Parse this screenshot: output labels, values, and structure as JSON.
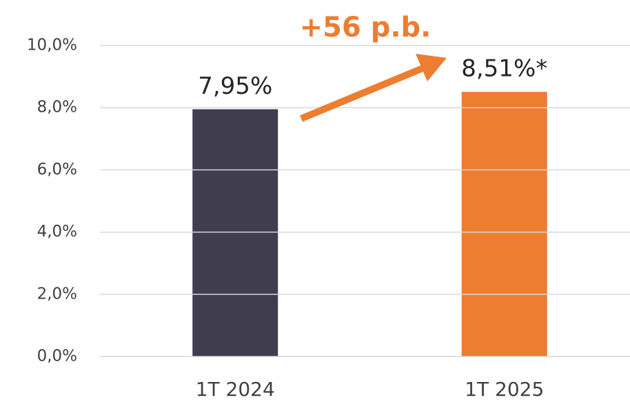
{
  "chart_data": {
    "type": "bar",
    "annotation": "+56 p.b.",
    "categories": [
      "1T 2024",
      "1T 2025"
    ],
    "values": [
      7.95,
      8.51
    ],
    "value_labels": [
      "7,95%",
      "8,51%*"
    ],
    "colors": [
      "#403d4f",
      "#ed7d31"
    ],
    "ylim": [
      0,
      10
    ],
    "yticks": [
      {
        "value": 0,
        "label": "0,0%"
      },
      {
        "value": 2,
        "label": "2,0%"
      },
      {
        "value": 4,
        "label": "4,0%"
      },
      {
        "value": 6,
        "label": "6,0%"
      },
      {
        "value": 8,
        "label": "8,0%"
      },
      {
        "value": 10,
        "label": "10,0%"
      }
    ],
    "grid": true
  }
}
